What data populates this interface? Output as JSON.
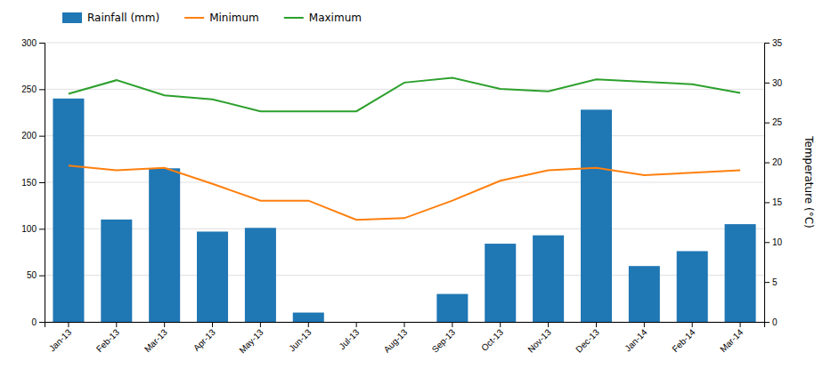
{
  "chart_data": {
    "type": "bar",
    "categories": [
      "Jan-13",
      "Feb-13",
      "Mar-13",
      "Apr-13",
      "May-13",
      "Jun-13",
      "Jul-13",
      "Aug-13",
      "Sep-13",
      "Oct-13",
      "Nov-13",
      "Dec-13",
      "Jan-14",
      "Feb-14",
      "Mar-14"
    ],
    "series": [
      {
        "name": "Rainfall (mm)",
        "type": "bar",
        "values": [
          240,
          110,
          165,
          97,
          101,
          10,
          0,
          0,
          30,
          84,
          93,
          228,
          60,
          76,
          105
        ]
      },
      {
        "name": "Minimum",
        "type": "line",
        "axis": "y2",
        "values": [
          19.6,
          19.0,
          19.3,
          17.3,
          15.2,
          15.2,
          12.8,
          13.0,
          15.2,
          17.7,
          19.0,
          19.3,
          18.4,
          18.7,
          19.0
        ]
      },
      {
        "name": "Maximum",
        "type": "line",
        "axis": "y2",
        "values": [
          28.6,
          30.3,
          28.4,
          27.9,
          26.4,
          26.4,
          26.4,
          30.0,
          30.6,
          29.2,
          28.9,
          30.4,
          30.1,
          29.8,
          28.7
        ]
      }
    ],
    "ylim": [
      0,
      300
    ],
    "yticks": [
      0,
      50,
      100,
      150,
      200,
      250,
      300
    ],
    "y2lim": [
      0,
      35
    ],
    "y2ticks": [
      0,
      5,
      10,
      15,
      20,
      25,
      30,
      35
    ],
    "y2label": "Temperature (°C)",
    "grid": true,
    "legend": "top"
  }
}
